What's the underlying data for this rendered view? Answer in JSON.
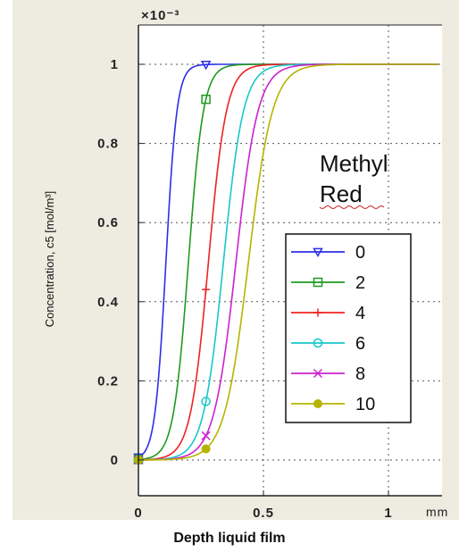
{
  "chart_data": {
    "type": "line",
    "xlabel": "Depth liquid film",
    "x_unit": "mm",
    "ylabel": "Concentration, c5 [mol/m³]",
    "y_multiplier": "×10⁻³",
    "annotation": [
      "Methyl",
      "Red"
    ],
    "xlim": [
      0,
      1.2
    ],
    "ylim": [
      -0.1,
      1.1
    ],
    "xticks": [
      0,
      0.5,
      1
    ],
    "xtick_labels": [
      "0",
      "0.5",
      "1"
    ],
    "yticks": [
      0,
      0.2,
      0.4,
      0.6,
      0.8,
      1
    ],
    "ytick_labels": [
      "0",
      "0.2",
      "0.4",
      "0.6",
      "0.8",
      "1"
    ],
    "grid": true,
    "legend_position": "right-middle",
    "series": [
      {
        "name": "0",
        "color": "#2e2ee6",
        "marker": "triangle-down",
        "center": 0.11,
        "width": 0.022
      },
      {
        "name": "2",
        "color": "#1f9a1f",
        "marker": "square",
        "center": 0.2,
        "width": 0.03
      },
      {
        "name": "4",
        "color": "#ee2222",
        "marker": "plus",
        "center": 0.28,
        "width": 0.036
      },
      {
        "name": "6",
        "color": "#18c8c8",
        "marker": "circle",
        "center": 0.34,
        "width": 0.04
      },
      {
        "name": "8",
        "color": "#cc22cc",
        "marker": "x",
        "center": 0.39,
        "width": 0.044
      },
      {
        "name": "10",
        "color": "#b4b400",
        "marker": "filled-circle",
        "center": 0.44,
        "width": 0.048
      }
    ]
  }
}
